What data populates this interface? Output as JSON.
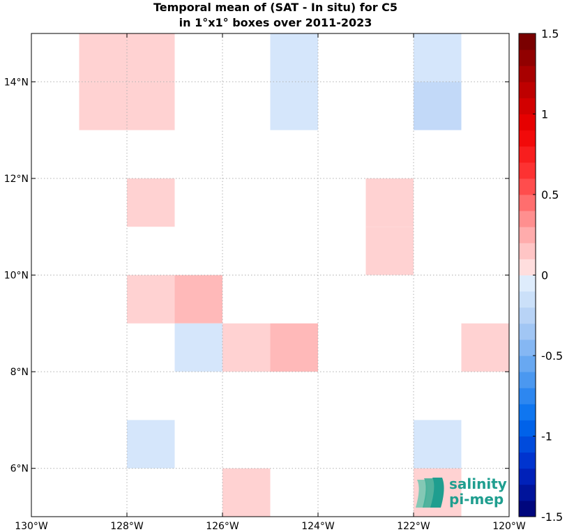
{
  "chart_data": {
    "type": "heatmap",
    "title_lines": [
      "Temporal mean of (SAT - In situ) for C5",
      "in 1°x1° boxes over 2011-2023"
    ],
    "xlim": [
      -130,
      -120
    ],
    "ylim": [
      5,
      15
    ],
    "x_ticks": [
      {
        "value": -130,
        "label": "130°W"
      },
      {
        "value": -128,
        "label": "128°W"
      },
      {
        "value": -126,
        "label": "126°W"
      },
      {
        "value": -124,
        "label": "124°W"
      },
      {
        "value": -122,
        "label": "122°W"
      },
      {
        "value": -120,
        "label": "120°W"
      }
    ],
    "y_ticks": [
      {
        "value": 6,
        "label": "6°N"
      },
      {
        "value": 8,
        "label": "8°N"
      },
      {
        "value": 10,
        "label": "10°N"
      },
      {
        "value": 12,
        "label": "12°N"
      },
      {
        "value": 14,
        "label": "14°N"
      }
    ],
    "grid": true,
    "cells": [
      {
        "lon": -129,
        "lat": 13,
        "value": 0.1
      },
      {
        "lon": -129,
        "lat": 14,
        "value": 0.1
      },
      {
        "lon": -128,
        "lat": 13,
        "value": 0.1
      },
      {
        "lon": -128,
        "lat": 14,
        "value": 0.1
      },
      {
        "lon": -125,
        "lat": 13,
        "value": -0.1
      },
      {
        "lon": -125,
        "lat": 14,
        "value": -0.1
      },
      {
        "lon": -122,
        "lat": 14,
        "value": -0.1
      },
      {
        "lon": -122,
        "lat": 13,
        "value": -0.2
      },
      {
        "lon": -128,
        "lat": 11,
        "value": 0.1
      },
      {
        "lon": -123,
        "lat": 10,
        "value": 0.1
      },
      {
        "lon": -123,
        "lat": 11,
        "value": 0.1
      },
      {
        "lon": -128,
        "lat": 9,
        "value": 0.1
      },
      {
        "lon": -127,
        "lat": 9,
        "value": 0.2
      },
      {
        "lon": -127,
        "lat": 8,
        "value": -0.1
      },
      {
        "lon": -126,
        "lat": 8,
        "value": 0.1
      },
      {
        "lon": -125,
        "lat": 8,
        "value": 0.2
      },
      {
        "lon": -121,
        "lat": 8,
        "value": 0.1
      },
      {
        "lon": -128,
        "lat": 6,
        "value": -0.1
      },
      {
        "lon": -122,
        "lat": 6,
        "value": -0.1
      },
      {
        "lon": -126,
        "lat": 5,
        "value": 0.1
      },
      {
        "lon": -122,
        "lat": 5,
        "value": 0.1
      }
    ],
    "colorbar": {
      "range": [
        -1.5,
        1.5
      ],
      "levels": 30,
      "ticks": [
        {
          "value": 1.5,
          "label": "1.5"
        },
        {
          "value": 1,
          "label": "1"
        },
        {
          "value": 0.5,
          "label": "0.5"
        },
        {
          "value": 0,
          "label": "0"
        },
        {
          "value": -0.5,
          "label": "-0.5"
        },
        {
          "value": -1,
          "label": "-1"
        },
        {
          "value": -1.5,
          "label": "-1.5"
        }
      ]
    }
  },
  "logo": {
    "line1": "salinity",
    "line2": "pi-mep",
    "color": "#1f9e8f"
  }
}
